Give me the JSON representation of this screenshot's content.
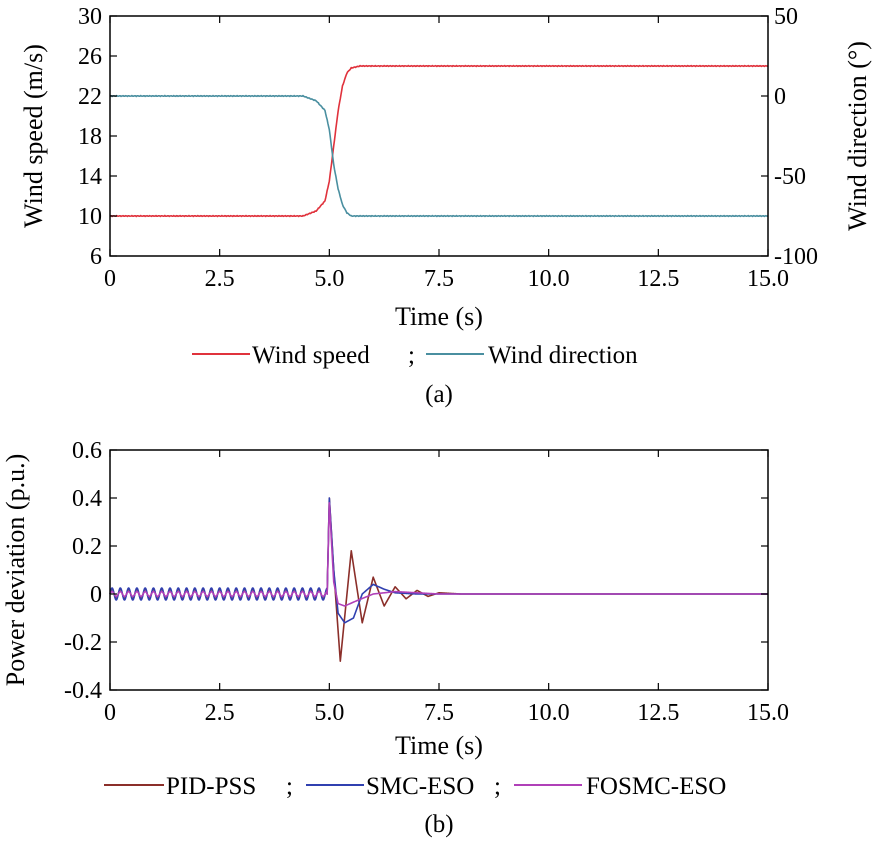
{
  "chart_data": [
    {
      "type": "line",
      "caption": "(a)",
      "xlabel": "Time (s)",
      "ylabel": "Wind speed (m/s)",
      "ylabel_right": "Wind direction (°)",
      "xlim": [
        0,
        15
      ],
      "ylim": [
        6,
        30
      ],
      "ylim_right": [
        -100,
        50
      ],
      "x_ticks": [
        "0",
        "2.5",
        "5.0",
        "7.5",
        "10.0",
        "12.5",
        "15.0"
      ],
      "y_ticks": [
        "6",
        "10",
        "14",
        "18",
        "22",
        "26",
        "30"
      ],
      "y_ticks_right": [
        "-100",
        "-50",
        "0",
        "50"
      ],
      "grid": false,
      "legend": "bottom",
      "legend_separator": ";",
      "series": [
        {
          "name": "Wind speed",
          "axis": "left",
          "color": "#e0323c",
          "x": [
            0,
            1,
            2,
            3,
            4,
            4.4,
            4.7,
            4.9,
            5.0,
            5.1,
            5.2,
            5.3,
            5.4,
            5.5,
            5.7,
            6.0,
            7,
            10,
            15
          ],
          "y": [
            10,
            10,
            10,
            10,
            10,
            10,
            10.5,
            11.5,
            13.5,
            17,
            20.5,
            23,
            24.3,
            24.8,
            25,
            25,
            25,
            25,
            25
          ]
        },
        {
          "name": "Wind direction",
          "axis": "right",
          "color": "#4a8fa0",
          "x": [
            0,
            1,
            2,
            3,
            4,
            4.4,
            4.7,
            4.9,
            5.0,
            5.1,
            5.2,
            5.3,
            5.4,
            5.5,
            5.7,
            6.0,
            7,
            10,
            15
          ],
          "y": [
            0,
            0,
            0,
            0,
            0,
            0,
            -3,
            -9,
            -21,
            -43,
            -58,
            -68,
            -73,
            -75,
            -75,
            -75,
            -75,
            -75,
            -75
          ]
        }
      ]
    },
    {
      "type": "line",
      "caption": "(b)",
      "xlabel": "Time (s)",
      "ylabel": "Power deviation (p.u.)",
      "xlim": [
        0,
        15
      ],
      "ylim": [
        -0.4,
        0.6
      ],
      "x_ticks": [
        "0",
        "2.5",
        "5.0",
        "7.5",
        "10.0",
        "12.5",
        "15.0"
      ],
      "y_ticks": [
        "-0.4",
        "-0.2",
        "0",
        "0.2",
        "0.4",
        "0.6"
      ],
      "grid": false,
      "legend": "bottom",
      "legend_separator": ";",
      "series": [
        {
          "name": "PID-PSS",
          "color": "#8b2f2a",
          "pre_oscillation_amplitude": 0.02,
          "x": [
            0,
            4.95,
            5.0,
            5.1,
            5.25,
            5.5,
            5.75,
            6.0,
            6.25,
            6.5,
            6.75,
            7.0,
            7.25,
            7.5,
            8.0,
            15
          ],
          "y": [
            0,
            0,
            0.4,
            0.1,
            -0.28,
            0.18,
            -0.12,
            0.07,
            -0.05,
            0.03,
            -0.02,
            0.015,
            -0.01,
            0.005,
            0,
            0
          ]
        },
        {
          "name": "SMC-ESO",
          "color": "#3040b0",
          "pre_oscillation_amplitude": 0.025,
          "x": [
            0,
            4.95,
            5.0,
            5.1,
            5.2,
            5.35,
            5.55,
            5.75,
            6.0,
            6.25,
            6.5,
            7.0,
            7.5,
            15
          ],
          "y": [
            0,
            0,
            0.4,
            0.1,
            -0.08,
            -0.12,
            -0.1,
            0.0,
            0.04,
            0.02,
            0.005,
            0,
            0,
            0
          ]
        },
        {
          "name": "FOSMC-ESO",
          "color": "#b040b8",
          "pre_oscillation_amplitude": 0.01,
          "x": [
            0,
            4.95,
            5.0,
            5.1,
            5.2,
            5.35,
            5.6,
            6.0,
            6.5,
            7.0,
            7.5,
            15
          ],
          "y": [
            0,
            0,
            0.38,
            0.05,
            -0.04,
            -0.05,
            -0.03,
            0.0,
            0.01,
            0.005,
            0,
            0
          ]
        }
      ]
    }
  ]
}
